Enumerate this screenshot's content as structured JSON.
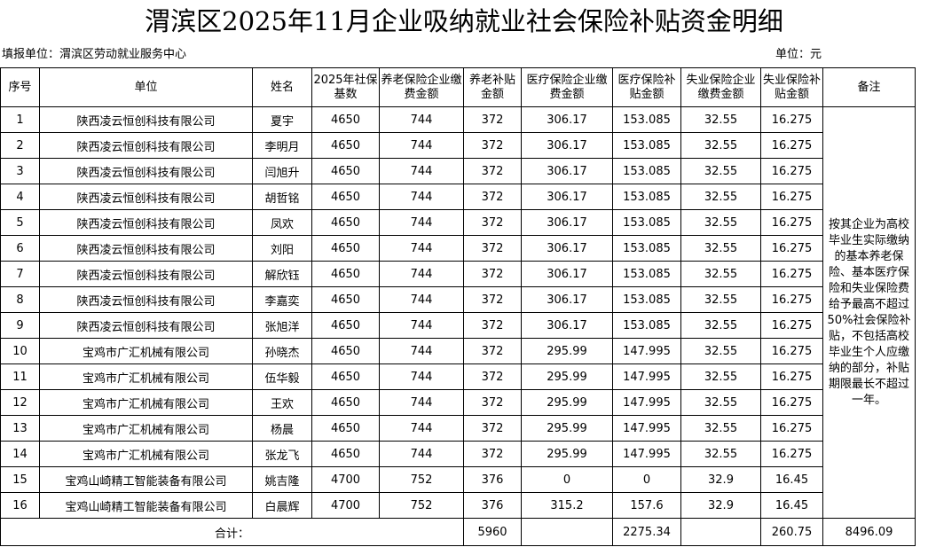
{
  "title": "渭滨区2025年11月企业吸纳就业社会保险补贴资金明细",
  "meta": {
    "unit_label": "填报单位：渭滨区劳动就业服务中心",
    "currency_label": "单位：元"
  },
  "headers": {
    "seq": "序号",
    "company": "单位",
    "name": "姓名",
    "base": "2025年社保基数",
    "pension_pay": "养老保险企业缴费金额",
    "pension_subsidy": "养老补贴金额",
    "medical_pay": "医疗保险企业缴费金额",
    "medical_subsidy": "医疗保险补贴金额",
    "unemp_pay": "失业保险企业缴费金额",
    "unemp_subsidy": "失业保险补贴金额",
    "remark": "备注"
  },
  "rows": [
    {
      "seq": "1",
      "company": "陕西凌云恒创科技有限公司",
      "name": "夏宇",
      "base": "4650",
      "pension_pay": "744",
      "pension_subsidy": "372",
      "medical_pay": "306.17",
      "medical_subsidy": "153.085",
      "unemp_pay": "32.55",
      "unemp_subsidy": "16.275"
    },
    {
      "seq": "2",
      "company": "陕西凌云恒创科技有限公司",
      "name": "李明月",
      "base": "4650",
      "pension_pay": "744",
      "pension_subsidy": "372",
      "medical_pay": "306.17",
      "medical_subsidy": "153.085",
      "unemp_pay": "32.55",
      "unemp_subsidy": "16.275"
    },
    {
      "seq": "3",
      "company": "陕西凌云恒创科技有限公司",
      "name": "闫旭升",
      "base": "4650",
      "pension_pay": "744",
      "pension_subsidy": "372",
      "medical_pay": "306.17",
      "medical_subsidy": "153.085",
      "unemp_pay": "32.55",
      "unemp_subsidy": "16.275"
    },
    {
      "seq": "4",
      "company": "陕西凌云恒创科技有限公司",
      "name": "胡哲铭",
      "base": "4650",
      "pension_pay": "744",
      "pension_subsidy": "372",
      "medical_pay": "306.17",
      "medical_subsidy": "153.085",
      "unemp_pay": "32.55",
      "unemp_subsidy": "16.275"
    },
    {
      "seq": "5",
      "company": "陕西凌云恒创科技有限公司",
      "name": "凤欢",
      "base": "4650",
      "pension_pay": "744",
      "pension_subsidy": "372",
      "medical_pay": "306.17",
      "medical_subsidy": "153.085",
      "unemp_pay": "32.55",
      "unemp_subsidy": "16.275"
    },
    {
      "seq": "6",
      "company": "陕西凌云恒创科技有限公司",
      "name": "刘阳",
      "base": "4650",
      "pension_pay": "744",
      "pension_subsidy": "372",
      "medical_pay": "306.17",
      "medical_subsidy": "153.085",
      "unemp_pay": "32.55",
      "unemp_subsidy": "16.275"
    },
    {
      "seq": "7",
      "company": "陕西凌云恒创科技有限公司",
      "name": "解欣钰",
      "base": "4650",
      "pension_pay": "744",
      "pension_subsidy": "372",
      "medical_pay": "306.17",
      "medical_subsidy": "153.085",
      "unemp_pay": "32.55",
      "unemp_subsidy": "16.275"
    },
    {
      "seq": "8",
      "company": "陕西凌云恒创科技有限公司",
      "name": "李嘉奕",
      "base": "4650",
      "pension_pay": "744",
      "pension_subsidy": "372",
      "medical_pay": "306.17",
      "medical_subsidy": "153.085",
      "unemp_pay": "32.55",
      "unemp_subsidy": "16.275"
    },
    {
      "seq": "9",
      "company": "陕西凌云恒创科技有限公司",
      "name": "张旭洋",
      "base": "4650",
      "pension_pay": "744",
      "pension_subsidy": "372",
      "medical_pay": "306.17",
      "medical_subsidy": "153.085",
      "unemp_pay": "32.55",
      "unemp_subsidy": "16.275"
    },
    {
      "seq": "10",
      "company": "宝鸡市广汇机械有限公司",
      "name": "孙晓杰",
      "base": "4650",
      "pension_pay": "744",
      "pension_subsidy": "372",
      "medical_pay": "295.99",
      "medical_subsidy": "147.995",
      "unemp_pay": "32.55",
      "unemp_subsidy": "16.275"
    },
    {
      "seq": "11",
      "company": "宝鸡市广汇机械有限公司",
      "name": "伍华毅",
      "base": "4650",
      "pension_pay": "744",
      "pension_subsidy": "372",
      "medical_pay": "295.99",
      "medical_subsidy": "147.995",
      "unemp_pay": "32.55",
      "unemp_subsidy": "16.275"
    },
    {
      "seq": "12",
      "company": "宝鸡市广汇机械有限公司",
      "name": "王欢",
      "base": "4650",
      "pension_pay": "744",
      "pension_subsidy": "372",
      "medical_pay": "295.99",
      "medical_subsidy": "147.995",
      "unemp_pay": "32.55",
      "unemp_subsidy": "16.275"
    },
    {
      "seq": "13",
      "company": "宝鸡市广汇机械有限公司",
      "name": "杨晨",
      "base": "4650",
      "pension_pay": "744",
      "pension_subsidy": "372",
      "medical_pay": "295.99",
      "medical_subsidy": "147.995",
      "unemp_pay": "32.55",
      "unemp_subsidy": "16.275"
    },
    {
      "seq": "14",
      "company": "宝鸡市广汇机械有限公司",
      "name": "张龙飞",
      "base": "4650",
      "pension_pay": "744",
      "pension_subsidy": "372",
      "medical_pay": "295.99",
      "medical_subsidy": "147.995",
      "unemp_pay": "32.55",
      "unemp_subsidy": "16.275"
    },
    {
      "seq": "15",
      "company": "宝鸡山崎精工智能装备有限公司",
      "name": "姚吉隆",
      "base": "4700",
      "pension_pay": "752",
      "pension_subsidy": "376",
      "medical_pay": "0",
      "medical_subsidy": "0",
      "unemp_pay": "32.9",
      "unemp_subsidy": "16.45"
    },
    {
      "seq": "16",
      "company": "宝鸡山崎精工智能装备有限公司",
      "name": "白晨辉",
      "base": "4700",
      "pension_pay": "752",
      "pension_subsidy": "376",
      "medical_pay": "315.2",
      "medical_subsidy": "157.6",
      "unemp_pay": "32.9",
      "unemp_subsidy": "16.45"
    }
  ],
  "remark_text": "按其企业为高校毕业生实际缴纳的基本养老保险、基本医疗保险和失业保险费给予最高不超过50%社会保险补贴，不包括高校毕业生个人应缴纳的部分，补贴期限最长不超过一年。",
  "totals": {
    "label": "合计：",
    "pension_subsidy": "5960",
    "medical_subsidy": "2275.34",
    "unemp_subsidy": "260.75",
    "grand_total": "8496.09"
  }
}
